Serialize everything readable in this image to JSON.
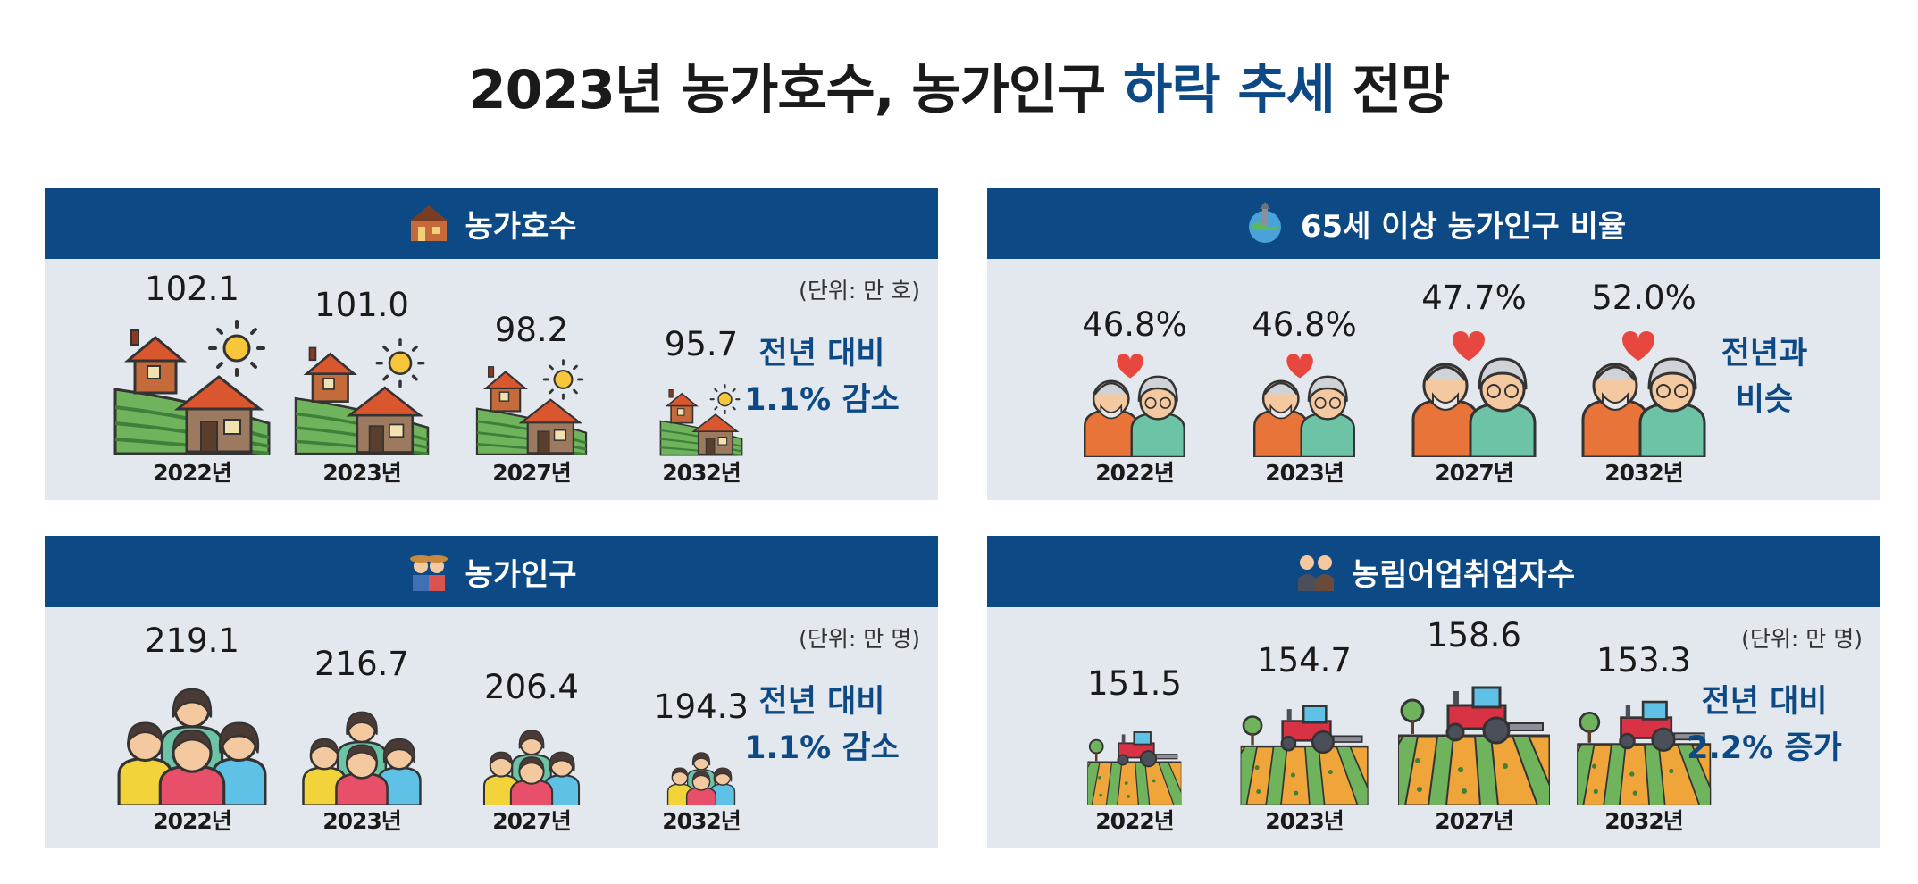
{
  "title": {
    "prefix": "2023년 농가호수, 농가인구 ",
    "highlight": "하락 추세",
    "suffix": " 전망"
  },
  "colors": {
    "accent": "#0d4a85",
    "panel_bg": "#e3e8ee"
  },
  "panels": {
    "households": {
      "title": "농가호수",
      "icon": "farm-village-icon",
      "unit": "(단위: 만 호)",
      "summary_line1": "전년 대비",
      "summary_line2": "1.1% 감소"
    },
    "elderly": {
      "title": "65세 이상 농가인구 비율",
      "icon": "globe-tower-icon",
      "summary_line1": "전년과",
      "summary_line2": "비슷"
    },
    "population": {
      "title": "농가인구",
      "icon": "farmer-couple-icon",
      "unit": "(단위: 만 명)",
      "summary_line1": "전년 대비",
      "summary_line2": "1.1% 감소"
    },
    "employed": {
      "title": "농림어업취업자수",
      "icon": "workers-icon",
      "unit": "(단위: 만 명)",
      "summary_line1": "전년 대비",
      "summary_line2": "2.2% 증가"
    }
  },
  "chart_data": [
    {
      "type": "pictograph",
      "title": "농가호수",
      "unit": "(단위: 만 호)",
      "categories": [
        "2022년",
        "2023년",
        "2027년",
        "2032년"
      ],
      "values": [
        102.1,
        101.0,
        98.2,
        95.7
      ],
      "labels": [
        "102.1",
        "101.0",
        "98.2",
        "95.7"
      ]
    },
    {
      "type": "pictograph",
      "title": "65세 이상 농가인구 비율",
      "categories": [
        "2022년",
        "2023년",
        "2027년",
        "2032년"
      ],
      "values": [
        46.8,
        46.8,
        47.7,
        52.0
      ],
      "labels": [
        "46.8%",
        "46.8%",
        "47.7%",
        "52.0%"
      ]
    },
    {
      "type": "pictograph",
      "title": "농가인구",
      "unit": "(단위: 만 명)",
      "categories": [
        "2022년",
        "2023년",
        "2027년",
        "2032년"
      ],
      "values": [
        219.1,
        216.7,
        206.4,
        194.3
      ],
      "labels": [
        "219.1",
        "216.7",
        "206.4",
        "194.3"
      ]
    },
    {
      "type": "pictograph",
      "title": "농림어업취업자수",
      "unit": "(단위: 만 명)",
      "categories": [
        "2022년",
        "2023년",
        "2027년",
        "2032년"
      ],
      "values": [
        151.5,
        154.7,
        158.6,
        153.3
      ],
      "labels": [
        "151.5",
        "154.7",
        "158.6",
        "153.3"
      ]
    }
  ]
}
